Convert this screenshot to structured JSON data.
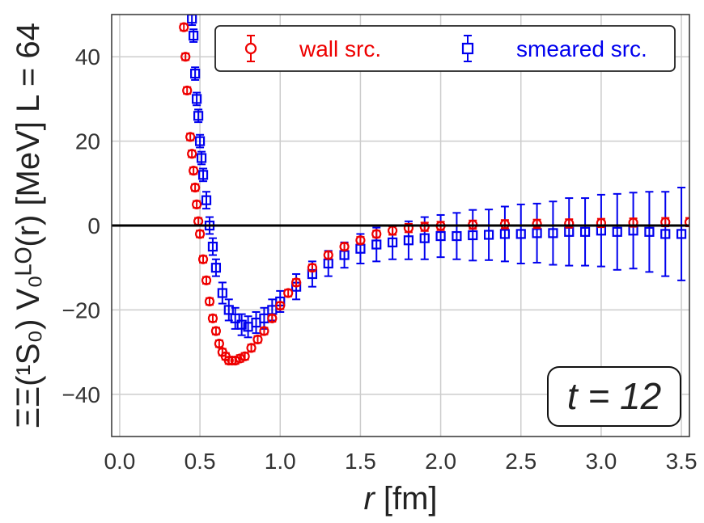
{
  "chart_data": {
    "type": "scatter",
    "xlabel_var": "r",
    "xlabel_unit": " [fm]",
    "ylabel": "ΞΞ(¹S₀) V₀ᴸᴼ(r) [MeV] L = 64",
    "xlim": [
      -0.05,
      3.55
    ],
    "ylim": [
      -50,
      50
    ],
    "xticks": [
      0.0,
      0.5,
      1.0,
      1.5,
      2.0,
      2.5,
      3.0,
      3.5
    ],
    "xtick_labels": [
      "0.0",
      "0.5",
      "1.0",
      "1.5",
      "2.0",
      "2.5",
      "3.0",
      "3.5"
    ],
    "yticks": [
      -40,
      -20,
      0,
      20,
      40
    ],
    "ytick_labels": [
      "−40",
      "−20",
      "0",
      "20",
      "40"
    ],
    "grid": true,
    "reference_line_y": 0,
    "legend_position": "top",
    "annotation": "t = 12",
    "annotation_position": "bottom-right",
    "series": [
      {
        "name": "wall src.",
        "marker": "circle",
        "color": "#ee0000",
        "x": [
          0.4,
          0.41,
          0.42,
          0.44,
          0.45,
          0.46,
          0.47,
          0.48,
          0.49,
          0.5,
          0.52,
          0.54,
          0.56,
          0.58,
          0.6,
          0.62,
          0.64,
          0.66,
          0.68,
          0.7,
          0.72,
          0.75,
          0.78,
          0.82,
          0.86,
          0.9,
          0.95,
          1.0,
          1.05,
          1.1,
          1.2,
          1.3,
          1.4,
          1.5,
          1.6,
          1.7,
          1.8,
          1.9,
          2.0,
          2.2,
          2.4,
          2.6,
          2.8,
          3.0,
          3.2,
          3.4,
          3.55
        ],
        "y": [
          47,
          40,
          32,
          21,
          17,
          13,
          9,
          5,
          1,
          -2,
          -8,
          -13,
          -18,
          -22,
          -25,
          -28,
          -30,
          -31,
          -32,
          -32,
          -32,
          -31.5,
          -31,
          -29,
          -27,
          -25,
          -22,
          -19,
          -16,
          -13.5,
          -10,
          -7,
          -5,
          -3.5,
          -2,
          -1.2,
          -0.6,
          -0.3,
          -0.1,
          0.2,
          0.3,
          0.4,
          0.5,
          0.6,
          0.7,
          0.8,
          0.8
        ],
        "err": [
          0.8,
          0.8,
          0.8,
          0.8,
          0.8,
          0.8,
          0.8,
          0.8,
          0.8,
          0.8,
          0.8,
          0.8,
          0.8,
          0.8,
          0.8,
          0.8,
          0.8,
          0.8,
          0.8,
          0.8,
          0.8,
          0.8,
          0.8,
          0.8,
          0.8,
          0.8,
          0.8,
          0.8,
          0.8,
          0.8,
          0.8,
          0.8,
          0.8,
          0.8,
          0.8,
          1.0,
          1.0,
          1.0,
          1.0,
          1.0,
          1.0,
          1.0,
          1.0,
          1.0,
          1.0,
          1.0,
          1.0
        ]
      },
      {
        "name": "smeared src.",
        "marker": "square",
        "color": "#0000ee",
        "x": [
          0.45,
          0.46,
          0.47,
          0.48,
          0.49,
          0.5,
          0.51,
          0.52,
          0.54,
          0.56,
          0.58,
          0.6,
          0.64,
          0.68,
          0.72,
          0.76,
          0.8,
          0.85,
          0.9,
          0.95,
          1.0,
          1.1,
          1.2,
          1.3,
          1.4,
          1.5,
          1.6,
          1.7,
          1.8,
          1.9,
          2.0,
          2.1,
          2.2,
          2.3,
          2.4,
          2.5,
          2.6,
          2.7,
          2.8,
          2.9,
          3.0,
          3.1,
          3.2,
          3.3,
          3.4,
          3.5
        ],
        "y": [
          49,
          45,
          36,
          30,
          26,
          20,
          16,
          12,
          6,
          0,
          -5,
          -10,
          -16,
          -20,
          -22,
          -23.5,
          -24,
          -23,
          -22,
          -20,
          -18,
          -14.5,
          -11.5,
          -9,
          -7,
          -5.5,
          -4.5,
          -4,
          -3.5,
          -3,
          -2.5,
          -2.5,
          -2.3,
          -2.2,
          -2,
          -2,
          -1.8,
          -1.8,
          -1.5,
          -1.5,
          -1.2,
          -1.5,
          -1.2,
          -1.5,
          -2,
          -2
        ],
        "err": [
          1.5,
          1.5,
          1.5,
          1.5,
          1.5,
          1.5,
          1.5,
          1.5,
          2,
          2,
          2,
          2,
          2.5,
          2.5,
          2.5,
          2.5,
          2.5,
          2.5,
          2.5,
          2.5,
          2.5,
          3,
          3,
          3,
          3,
          3.5,
          4,
          4,
          4.5,
          5,
          5,
          5.5,
          6,
          6,
          6.5,
          7,
          7,
          7.5,
          8,
          8,
          8.5,
          9,
          9,
          9.5,
          10,
          11
        ]
      }
    ]
  }
}
